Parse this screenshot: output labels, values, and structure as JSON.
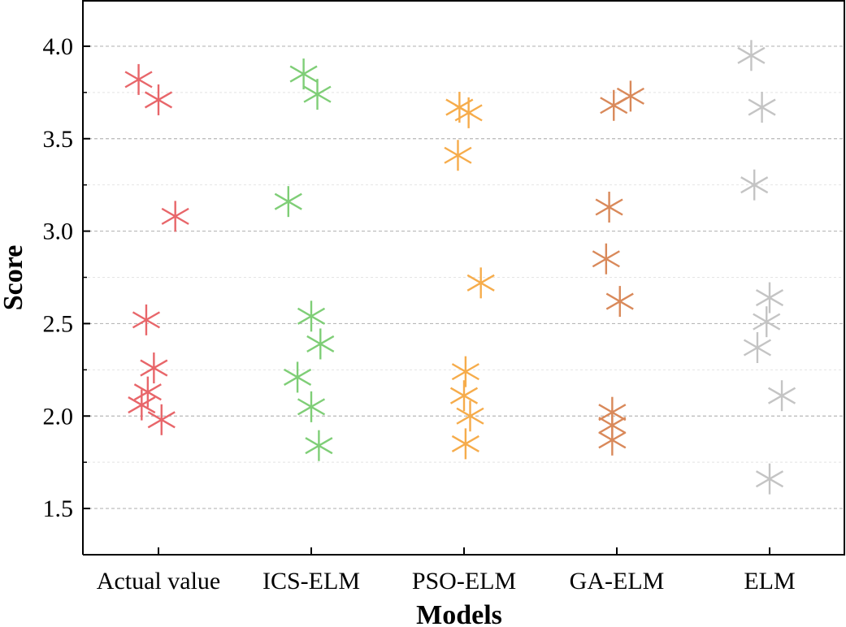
{
  "chart_data": {
    "type": "scatter",
    "xlabel": "Models",
    "ylabel": "Score",
    "categories": [
      "Actual value",
      "ICS-ELM",
      "PSO-ELM",
      "GA-ELM",
      "ELM"
    ],
    "ylim": [
      1.25,
      4.25
    ],
    "yticks": [
      "1.5",
      "2.0",
      "2.5",
      "3.0",
      "3.5",
      "4.0"
    ],
    "grid": true,
    "marker": "asterisk",
    "series": [
      {
        "category": "Actual value",
        "color": "#e8666a",
        "points": [
          {
            "jitter": -0.13,
            "y": 3.82
          },
          {
            "jitter": 0.0,
            "y": 3.71
          },
          {
            "jitter": 0.11,
            "y": 3.08
          },
          {
            "jitter": -0.08,
            "y": 2.52
          },
          {
            "jitter": -0.03,
            "y": 2.26
          },
          {
            "jitter": -0.07,
            "y": 2.13
          },
          {
            "jitter": -0.11,
            "y": 2.06
          },
          {
            "jitter": 0.02,
            "y": 1.98
          }
        ]
      },
      {
        "category": "ICS-ELM",
        "color": "#7fce77",
        "points": [
          {
            "jitter": -0.05,
            "y": 3.85
          },
          {
            "jitter": 0.04,
            "y": 3.74
          },
          {
            "jitter": -0.15,
            "y": 3.16
          },
          {
            "jitter": 0.0,
            "y": 2.54
          },
          {
            "jitter": 0.06,
            "y": 2.39
          },
          {
            "jitter": -0.09,
            "y": 2.21
          },
          {
            "jitter": 0.0,
            "y": 2.05
          },
          {
            "jitter": 0.05,
            "y": 1.84
          }
        ]
      },
      {
        "category": "PSO-ELM",
        "color": "#f6ac4b",
        "points": [
          {
            "jitter": -0.03,
            "y": 3.67
          },
          {
            "jitter": 0.03,
            "y": 3.64
          },
          {
            "jitter": -0.04,
            "y": 3.41
          },
          {
            "jitter": 0.11,
            "y": 2.72
          },
          {
            "jitter": 0.01,
            "y": 2.24
          },
          {
            "jitter": 0.0,
            "y": 2.11
          },
          {
            "jitter": 0.04,
            "y": 2.0
          },
          {
            "jitter": 0.01,
            "y": 1.85
          }
        ]
      },
      {
        "category": "GA-ELM",
        "color": "#d9895a",
        "points": [
          {
            "jitter": -0.02,
            "y": 3.68
          },
          {
            "jitter": 0.09,
            "y": 3.73
          },
          {
            "jitter": -0.05,
            "y": 3.13
          },
          {
            "jitter": -0.07,
            "y": 2.85
          },
          {
            "jitter": 0.02,
            "y": 2.62
          },
          {
            "jitter": -0.03,
            "y": 2.02
          },
          {
            "jitter": -0.03,
            "y": 1.95
          },
          {
            "jitter": -0.03,
            "y": 1.87
          }
        ]
      },
      {
        "category": "ELM",
        "color": "#c4c4c4",
        "points": [
          {
            "jitter": -0.12,
            "y": 3.95
          },
          {
            "jitter": -0.05,
            "y": 3.67
          },
          {
            "jitter": -0.1,
            "y": 3.25
          },
          {
            "jitter": 0.0,
            "y": 2.64
          },
          {
            "jitter": -0.02,
            "y": 2.51
          },
          {
            "jitter": -0.08,
            "y": 2.37
          },
          {
            "jitter": 0.08,
            "y": 2.11
          },
          {
            "jitter": 0.0,
            "y": 1.66
          }
        ]
      }
    ]
  }
}
